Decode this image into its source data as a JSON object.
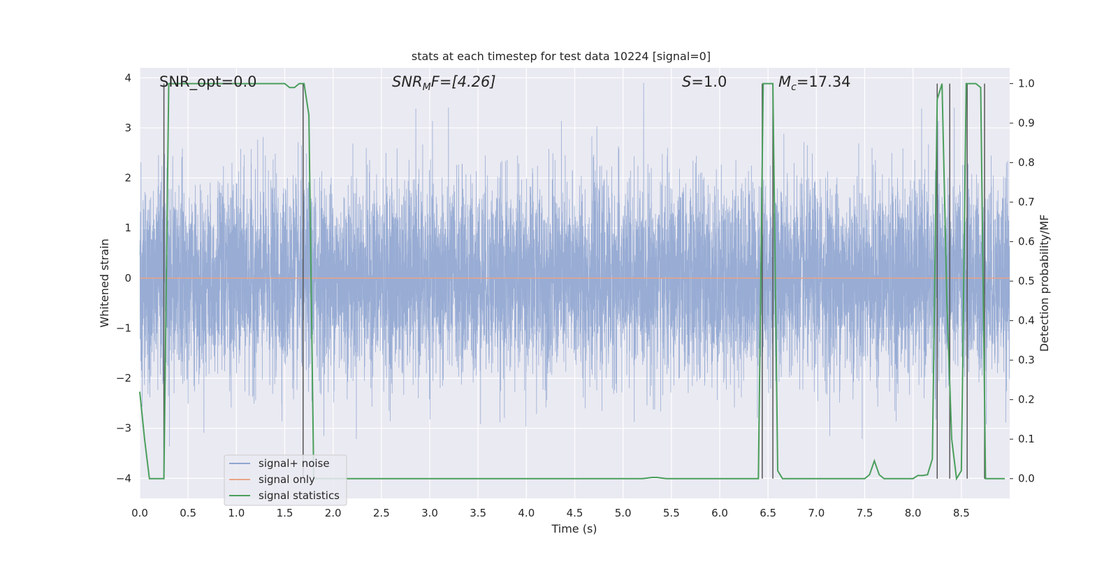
{
  "colors": {
    "plot_bg": "#eaeaf2",
    "grid": "#ffffff",
    "noise": "#8fa5d0",
    "signal": "#e8a487",
    "stats": "#4a9e5c",
    "vline": "#555555"
  },
  "chart_data": {
    "type": "line",
    "title": "stats at each timestep for test data 10224 [signal=0]",
    "xlabel": "Time (s)",
    "ylabel_left": "Whitened strain",
    "ylabel_right": "Detection probability/MF",
    "xlim": [
      0,
      9.0
    ],
    "ylim_left": [
      -4.4,
      4.2
    ],
    "ylim_right": [
      -0.05,
      1.04
    ],
    "x_ticks": [
      0.0,
      0.5,
      1.0,
      1.5,
      2.0,
      2.5,
      3.0,
      3.5,
      4.0,
      4.5,
      5.0,
      5.5,
      6.0,
      6.5,
      7.0,
      7.5,
      8.0,
      8.5
    ],
    "x_tick_labels": [
      "0.0",
      "0.5",
      "1.0",
      "1.5",
      "2.0",
      "2.5",
      "3.0",
      "3.5",
      "4.0",
      "4.5",
      "5.0",
      "5.5",
      "6.0",
      "6.5",
      "7.0",
      "7.5",
      "8.0",
      "8.5"
    ],
    "y_ticks_left": [
      -4,
      -3,
      -2,
      -1,
      0,
      1,
      2,
      3,
      4
    ],
    "y_tick_labels_left": [
      "−4",
      "−3",
      "−2",
      "−1",
      "0",
      "1",
      "2",
      "3",
      "4"
    ],
    "y_ticks_right": [
      0.0,
      0.1,
      0.2,
      0.3,
      0.4,
      0.5,
      0.6,
      0.7,
      0.8,
      0.9,
      1.0
    ],
    "y_tick_labels_right": [
      "0.0",
      "0.1",
      "0.2",
      "0.3",
      "0.4",
      "0.5",
      "0.6",
      "0.7",
      "0.8",
      "0.9",
      "1.0"
    ],
    "grid": true,
    "legend": {
      "placement": "lower-left",
      "entries": [
        "signal+ noise",
        "signal only",
        "signal statistics"
      ]
    },
    "annotations": {
      "snr_opt": "SNR_opt=0.0",
      "snr_mf_main": "SNR",
      "snr_mf_sub": "M",
      "snr_mf_rest": "F=[4.26]",
      "s_italic": "S",
      "s_rest": "=1.0",
      "mc_italic": "M",
      "mc_sub": "c",
      "mc_rest": "=17.34"
    },
    "series": [
      {
        "name": "signal+ noise",
        "axis": "left",
        "description_range": [
          -3.7,
          3.9
        ],
        "sample_rate_hz": 1000
      },
      {
        "name": "signal only",
        "axis": "left",
        "x": [
          0.0,
          9.0
        ],
        "y": [
          0.0,
          0.0
        ]
      },
      {
        "name": "signal statistics",
        "axis": "right",
        "x": [
          0.0,
          0.05,
          0.1,
          0.15,
          0.2,
          0.25,
          0.3,
          0.35,
          0.4,
          0.5,
          0.6,
          0.7,
          0.8,
          0.9,
          1.0,
          1.1,
          1.2,
          1.3,
          1.4,
          1.5,
          1.55,
          1.6,
          1.65,
          1.7,
          1.75,
          1.8,
          1.85,
          1.9,
          2.0,
          2.5,
          3.0,
          3.5,
          4.0,
          4.5,
          5.0,
          5.2,
          5.3,
          5.35,
          5.45,
          5.5,
          6.0,
          6.4,
          6.45,
          6.5,
          6.55,
          6.6,
          6.65,
          6.7,
          7.0,
          7.5,
          7.55,
          7.6,
          7.65,
          7.7,
          8.0,
          8.05,
          8.1,
          8.15,
          8.2,
          8.25,
          8.3,
          8.35,
          8.4,
          8.45,
          8.5,
          8.55,
          8.6,
          8.65,
          8.7,
          8.75,
          8.8,
          8.85,
          8.9,
          8.95
        ],
        "y": [
          0.22,
          0.1,
          0.0,
          0.0,
          0.0,
          0.0,
          1.0,
          1.0,
          1.0,
          1.0,
          1.0,
          1.0,
          1.0,
          1.0,
          1.0,
          1.0,
          1.0,
          1.0,
          1.0,
          1.0,
          0.99,
          0.99,
          1.0,
          1.0,
          0.92,
          0.0,
          0.0,
          0.0,
          0.0,
          0.0,
          0.0,
          0.0,
          0.0,
          0.0,
          0.0,
          0.0,
          0.003,
          0.003,
          0.0,
          0.0,
          0.0,
          0.0,
          1.0,
          1.0,
          1.0,
          0.02,
          0.0,
          0.0,
          0.0,
          0.0,
          0.01,
          0.045,
          0.01,
          0.0,
          0.0,
          0.008,
          0.008,
          0.01,
          0.05,
          0.96,
          1.0,
          0.45,
          0.1,
          0.0,
          0.02,
          1.0,
          1.0,
          1.0,
          0.99,
          0.0,
          0.0,
          0.0,
          0.0,
          0.0
        ]
      }
    ],
    "vertical_markers_x": [
      0.25,
      1.69,
      6.44,
      6.55,
      8.25,
      8.38,
      8.56,
      8.74
    ]
  }
}
